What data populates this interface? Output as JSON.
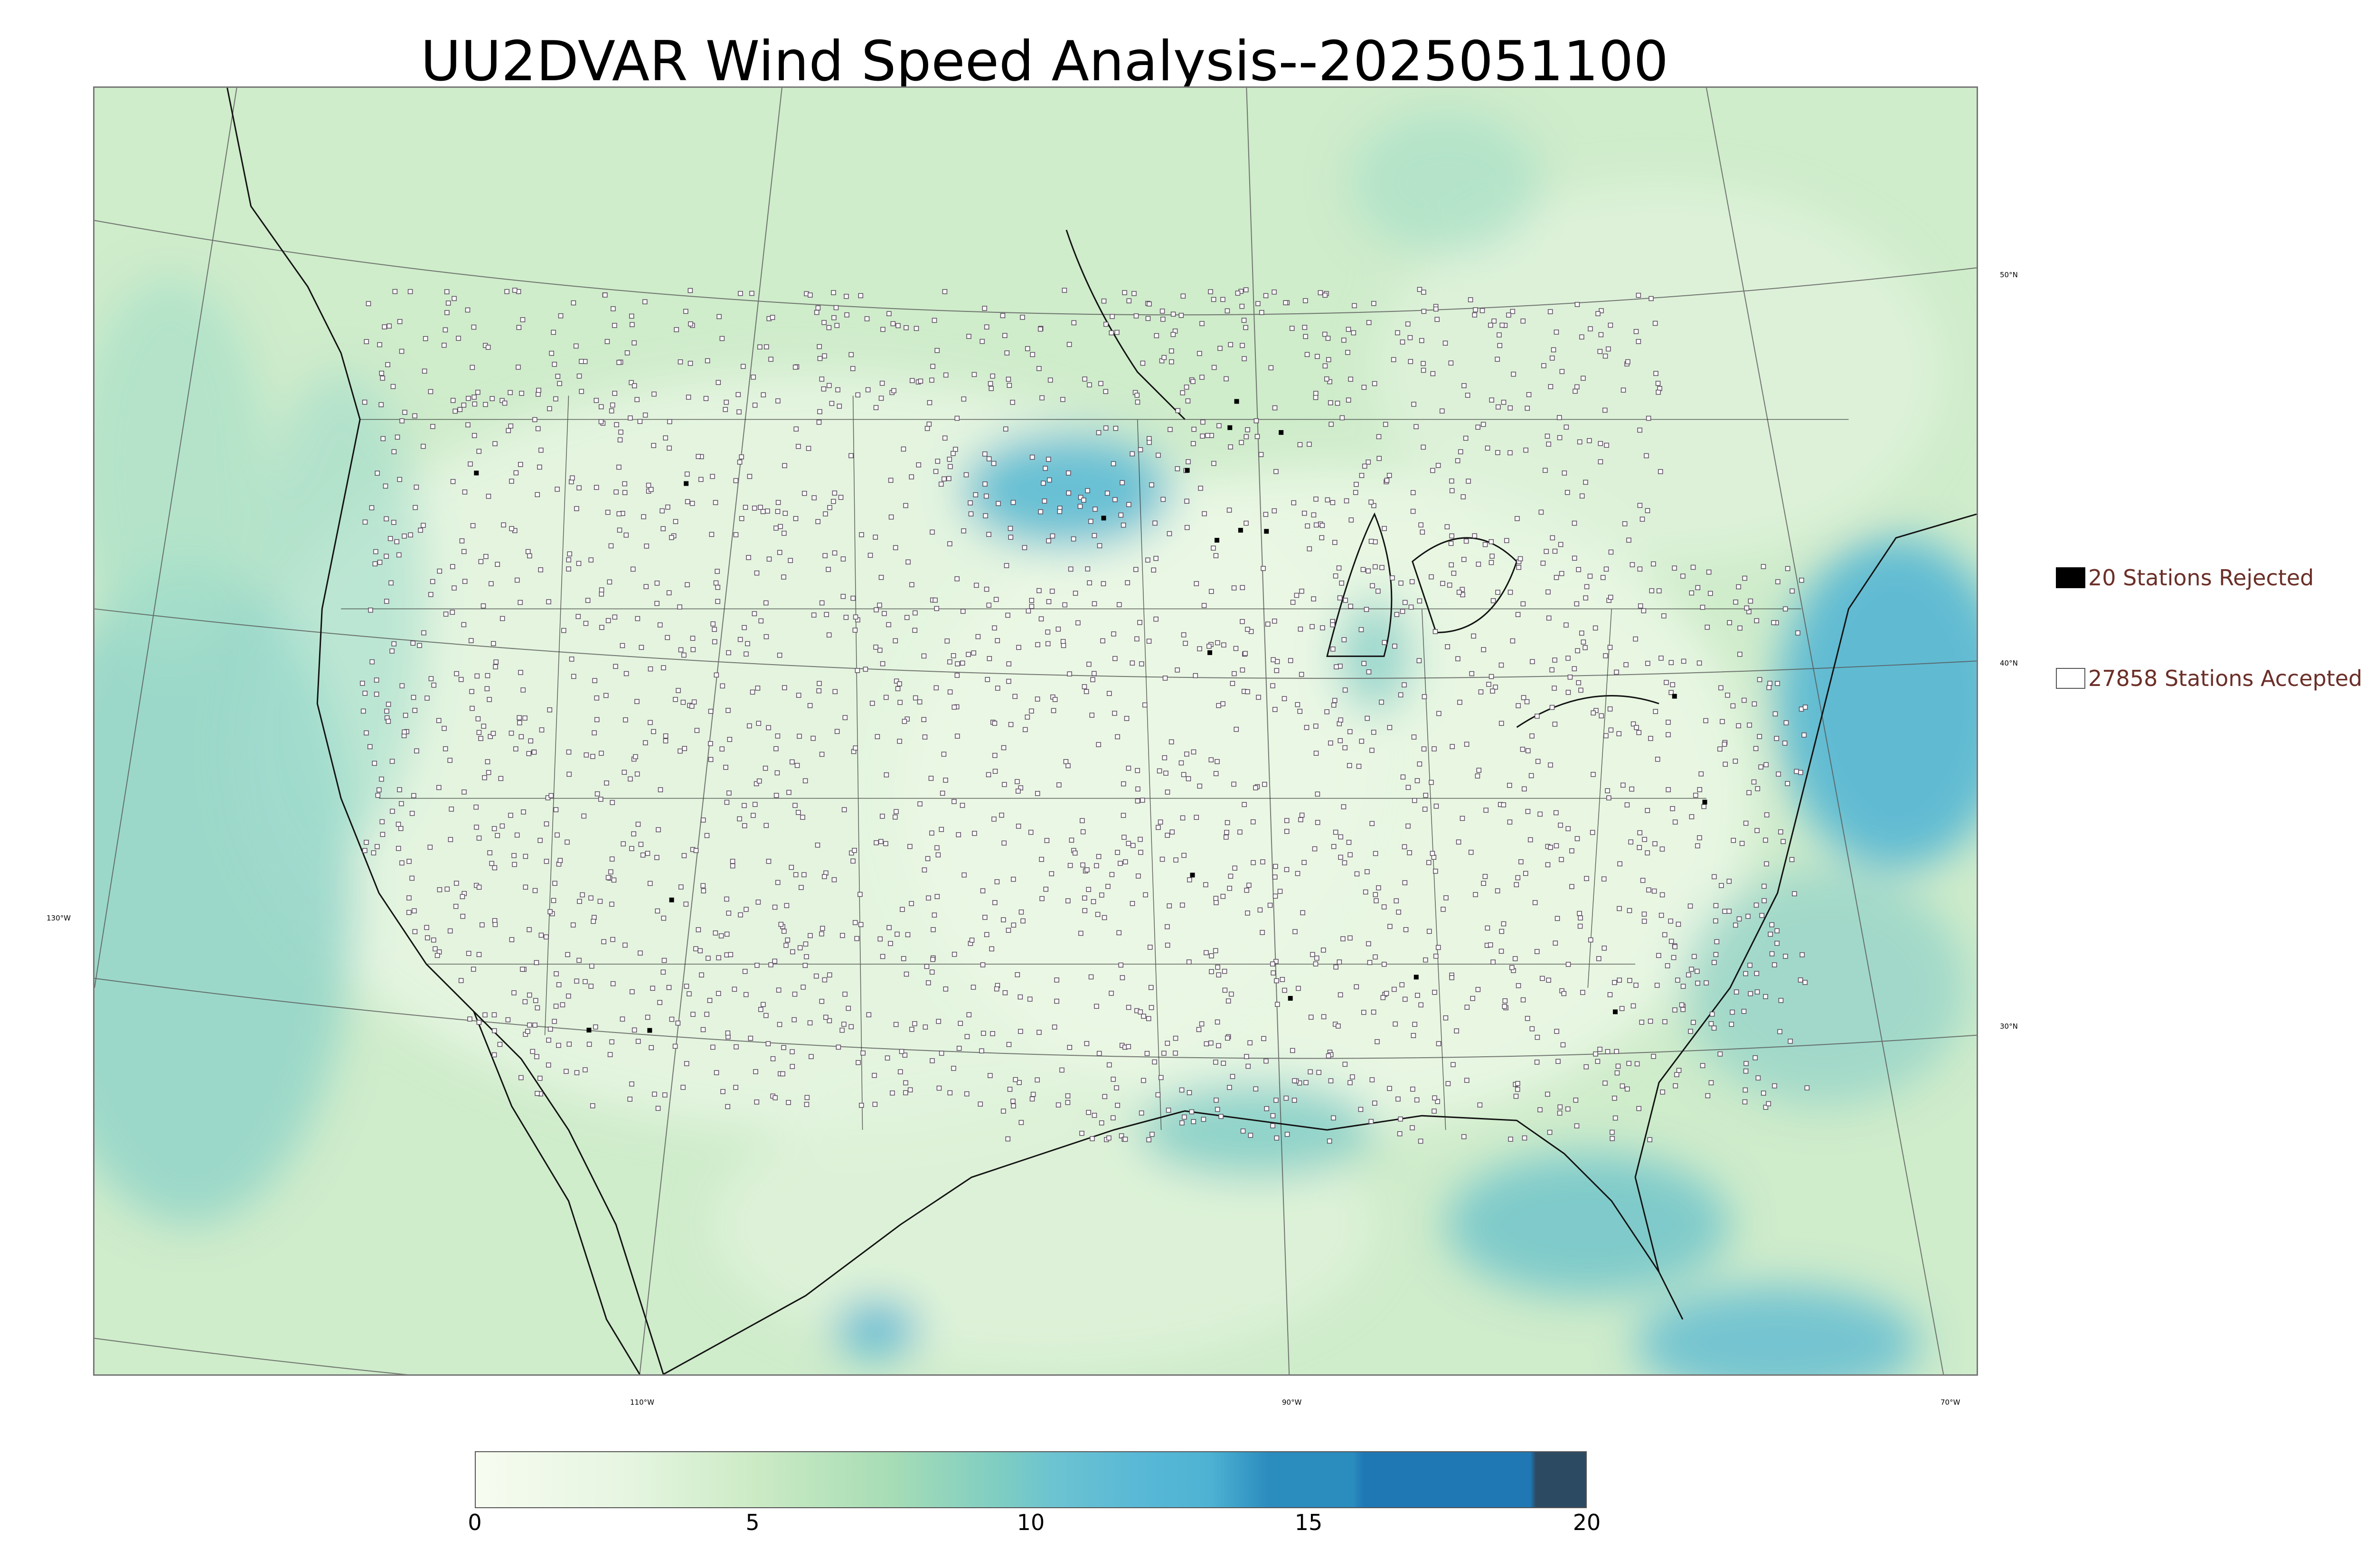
{
  "title": "UU2DVAR Wind Speed Analysis--2025051100",
  "map": {
    "lat_labels": [
      "50°N",
      "40°N",
      "30°N"
    ],
    "lon_labels": [
      "130°W",
      "110°W",
      "90°W",
      "70°W"
    ],
    "colors": {
      "land_low": "#e6f5df",
      "land_mid": "#ccebc5",
      "ocean_mid": "#a8ddb5",
      "high_wind": "#4eb3d3",
      "peak_wind": "#2b8cbe",
      "station_accepted": "#ffffff",
      "station_rejected": "#000000"
    }
  },
  "legend": {
    "rejected": {
      "label": "20 Stations Rejected",
      "color": "#000000"
    },
    "accepted": {
      "label": "27858 Stations Accepted",
      "color": "#ffffff"
    }
  },
  "colorbar": {
    "ticks": [
      "0",
      "5",
      "10",
      "15",
      "20"
    ],
    "min": 0,
    "max": 20,
    "colors": [
      "#f7fcf0",
      "#ccebc5",
      "#7bccc4",
      "#4eb3d3",
      "#2b8cbe",
      "#2d4a63"
    ]
  }
}
